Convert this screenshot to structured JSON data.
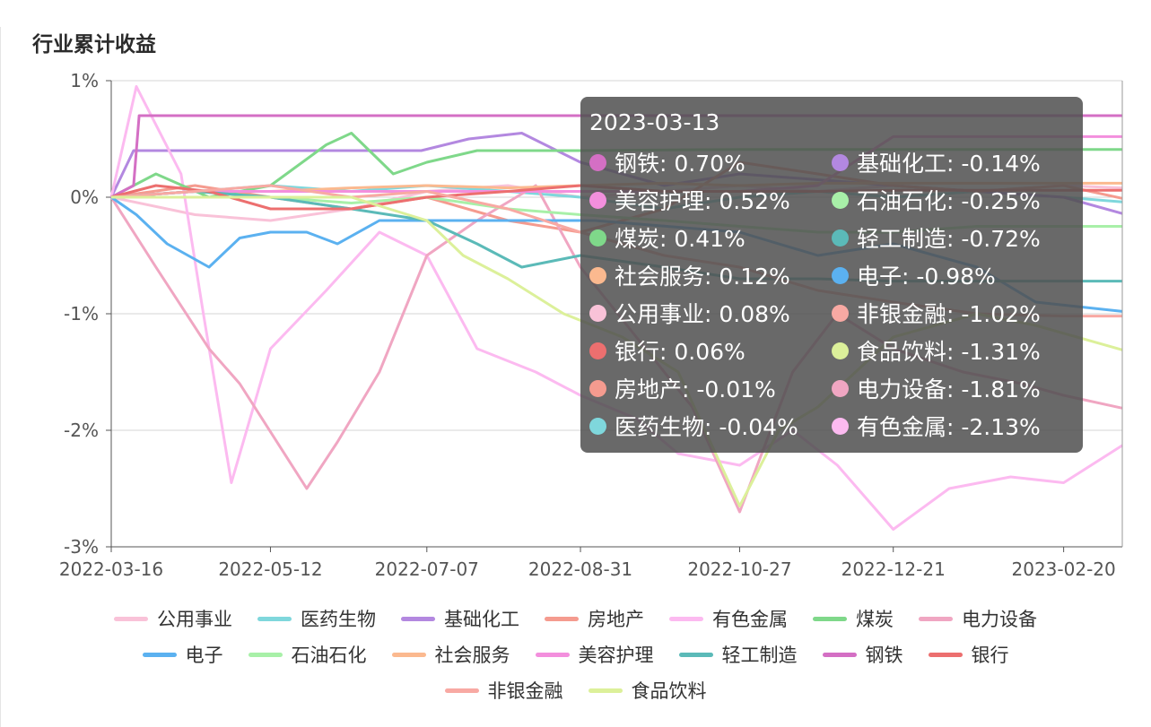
{
  "title": "行业累计收益",
  "chart_data": {
    "type": "line",
    "title": "行业累计收益",
    "ylim": [
      -3,
      1
    ],
    "y_ticks": [
      "1%",
      "0%",
      "-1%",
      "-2%",
      "-3%"
    ],
    "x_ticks": [
      "2022-03-16",
      "2022-05-12",
      "2022-07-07",
      "2022-08-31",
      "2022-10-27",
      "2022-12-21",
      "2023-02-20"
    ],
    "grid": true,
    "legend_position": "bottom",
    "series": [
      {
        "name": "公用事业",
        "color": "#f9c2d8",
        "x": [
          "2022-03-16",
          "2022-04-15",
          "2022-05-12",
          "2022-06-10",
          "2022-07-07",
          "2022-08-05",
          "2022-08-31",
          "2022-09-30",
          "2022-10-27",
          "2022-11-24",
          "2022-12-21",
          "2023-01-20",
          "2023-02-20",
          "2023-03-13"
        ],
        "values": [
          0,
          -0.15,
          -0.2,
          -0.1,
          0.05,
          0.1,
          0.0,
          0.05,
          0.1,
          0.05,
          0.1,
          0.05,
          0.1,
          0.08
        ]
      },
      {
        "name": "医药生物",
        "color": "#7fd7dc",
        "x": [
          "2022-03-16",
          "2022-04-15",
          "2022-05-12",
          "2022-06-10",
          "2022-07-07",
          "2022-08-05",
          "2022-08-31",
          "2022-09-30",
          "2022-10-27",
          "2022-11-24",
          "2022-12-21",
          "2023-01-20",
          "2023-02-20",
          "2023-03-13"
        ],
        "values": [
          0,
          0.05,
          0.1,
          0.05,
          0.1,
          0.05,
          0.0,
          -0.1,
          0.0,
          0.05,
          0.0,
          0.05,
          0.0,
          -0.04
        ]
      },
      {
        "name": "基础化工",
        "color": "#b388e0",
        "x": [
          "2022-03-16",
          "2022-03-24",
          "2022-04-15",
          "2022-05-12",
          "2022-06-10",
          "2022-07-05",
          "2022-07-22",
          "2022-08-10",
          "2022-08-31",
          "2022-09-30",
          "2022-10-27",
          "2022-11-24",
          "2022-12-21",
          "2023-01-20",
          "2023-02-20",
          "2023-03-13"
        ],
        "values": [
          0,
          0.4,
          0.4,
          0.4,
          0.4,
          0.4,
          0.5,
          0.55,
          0.3,
          0.1,
          0.2,
          0.15,
          0.1,
          0.05,
          0.0,
          -0.14
        ]
      },
      {
        "name": "房地产",
        "color": "#f59b8f",
        "x": [
          "2022-03-16",
          "2022-04-15",
          "2022-05-12",
          "2022-06-10",
          "2022-07-07",
          "2022-08-05",
          "2022-08-31",
          "2022-09-30",
          "2022-10-27",
          "2022-11-24",
          "2022-12-21",
          "2023-01-20",
          "2023-02-20",
          "2023-03-13"
        ],
        "values": [
          0,
          0.1,
          0.0,
          -0.1,
          0.0,
          -0.2,
          -0.3,
          -0.1,
          0.3,
          0.2,
          0.1,
          0.05,
          0.1,
          -0.01
        ]
      },
      {
        "name": "有色金属",
        "color": "#fcbaf0",
        "x": [
          "2022-03-16",
          "2022-03-25",
          "2022-04-10",
          "2022-04-18",
          "2022-04-28",
          "2022-05-12",
          "2022-06-01",
          "2022-06-20",
          "2022-07-07",
          "2022-07-25",
          "2022-08-15",
          "2022-08-31",
          "2022-09-20",
          "2022-10-05",
          "2022-10-27",
          "2022-11-15",
          "2022-12-01",
          "2022-12-21",
          "2023-01-10",
          "2023-02-01",
          "2023-02-20",
          "2023-03-13"
        ],
        "values": [
          0,
          0.95,
          0.2,
          -1.0,
          -2.45,
          -1.3,
          -0.8,
          -0.3,
          -0.5,
          -1.3,
          -1.5,
          -1.7,
          -1.9,
          -2.2,
          -2.3,
          -2.0,
          -2.3,
          -2.85,
          -2.5,
          -2.4,
          -2.45,
          -2.13
        ]
      },
      {
        "name": "煤炭",
        "color": "#7fd88a",
        "x": [
          "2022-03-16",
          "2022-04-01",
          "2022-04-20",
          "2022-05-12",
          "2022-06-01",
          "2022-06-10",
          "2022-06-25",
          "2022-07-07",
          "2022-07-25",
          "2022-08-31",
          "2022-10-27",
          "2022-12-21",
          "2023-02-20",
          "2023-03-13"
        ],
        "values": [
          0,
          0.2,
          0.0,
          0.1,
          0.45,
          0.55,
          0.2,
          0.3,
          0.4,
          0.4,
          0.41,
          0.41,
          0.41,
          0.41
        ]
      },
      {
        "name": "电力设备",
        "color": "#f0a6c2",
        "x": [
          "2022-03-16",
          "2022-04-01",
          "2022-04-20",
          "2022-05-01",
          "2022-05-25",
          "2022-06-05",
          "2022-06-20",
          "2022-07-07",
          "2022-07-25",
          "2022-08-15",
          "2022-08-31",
          "2022-09-20",
          "2022-10-10",
          "2022-10-27",
          "2022-11-15",
          "2022-12-01",
          "2022-12-21",
          "2023-01-15",
          "2023-02-05",
          "2023-02-20",
          "2023-03-13"
        ],
        "values": [
          0,
          -0.6,
          -1.3,
          -1.6,
          -2.5,
          -2.1,
          -1.5,
          -0.5,
          -0.2,
          0.1,
          -0.6,
          -1.2,
          -1.8,
          -2.7,
          -1.5,
          -1.0,
          -1.3,
          -1.5,
          -1.6,
          -1.7,
          -1.81
        ]
      },
      {
        "name": "电子",
        "color": "#5bb1f0",
        "x": [
          "2022-03-16",
          "2022-03-25",
          "2022-04-05",
          "2022-04-20",
          "2022-05-01",
          "2022-05-12",
          "2022-05-25",
          "2022-06-05",
          "2022-06-20",
          "2022-07-07",
          "2022-07-25",
          "2022-08-15",
          "2022-09-05",
          "2022-10-01",
          "2022-10-27",
          "2022-11-24",
          "2022-12-21",
          "2023-01-20",
          "2023-02-10",
          "2023-03-13"
        ],
        "values": [
          0,
          -0.15,
          -0.4,
          -0.6,
          -0.35,
          -0.3,
          -0.3,
          -0.4,
          -0.2,
          -0.2,
          -0.2,
          -0.2,
          -0.2,
          -0.25,
          -0.3,
          -0.5,
          -0.4,
          -0.6,
          -0.9,
          -0.98
        ]
      },
      {
        "name": "石油石化",
        "color": "#a8f0a8",
        "x": [
          "2022-03-16",
          "2022-04-15",
          "2022-05-12",
          "2022-06-10",
          "2022-07-07",
          "2022-08-05",
          "2022-08-31",
          "2022-09-30",
          "2022-10-27",
          "2022-11-24",
          "2022-12-21",
          "2023-01-20",
          "2023-02-20",
          "2023-03-13"
        ],
        "values": [
          0,
          0.05,
          0.0,
          -0.05,
          0.0,
          -0.1,
          -0.15,
          -0.2,
          -0.25,
          -0.3,
          -0.3,
          -0.25,
          -0.25,
          -0.25
        ]
      },
      {
        "name": "社会服务",
        "color": "#fbb98f",
        "x": [
          "2022-03-16",
          "2022-04-15",
          "2022-05-12",
          "2022-06-10",
          "2022-07-07",
          "2022-08-05",
          "2022-08-31",
          "2022-09-30",
          "2022-10-27",
          "2022-11-24",
          "2022-12-21",
          "2023-01-20",
          "2023-02-20",
          "2023-03-13"
        ],
        "values": [
          0,
          0.05,
          0.05,
          0.08,
          0.1,
          0.08,
          0.1,
          0.12,
          0.1,
          0.12,
          0.12,
          0.12,
          0.12,
          0.12
        ]
      },
      {
        "name": "美容护理",
        "color": "#f38fdd",
        "x": [
          "2022-03-16",
          "2022-04-15",
          "2022-05-12",
          "2022-06-10",
          "2022-07-07",
          "2022-08-05",
          "2022-08-31",
          "2022-09-30",
          "2022-10-27",
          "2022-11-24",
          "2022-12-21",
          "2023-01-20",
          "2023-02-20",
          "2023-03-13"
        ],
        "values": [
          0,
          0.05,
          0.05,
          0.05,
          0.05,
          0.05,
          0.05,
          0.05,
          0.05,
          0.1,
          0.52,
          0.52,
          0.52,
          0.52
        ]
      },
      {
        "name": "轻工制造",
        "color": "#5bbab8",
        "x": [
          "2022-03-16",
          "2022-04-15",
          "2022-05-12",
          "2022-06-10",
          "2022-07-07",
          "2022-07-25",
          "2022-08-10",
          "2022-08-31",
          "2022-09-30",
          "2022-10-27",
          "2022-11-24",
          "2022-12-21",
          "2023-01-20",
          "2023-02-20",
          "2023-03-13"
        ],
        "values": [
          0,
          0.05,
          0.0,
          -0.1,
          -0.2,
          -0.4,
          -0.6,
          -0.5,
          -0.6,
          -0.7,
          -0.7,
          -0.72,
          -0.72,
          -0.72,
          -0.72
        ]
      },
      {
        "name": "钢铁",
        "color": "#d46fc4",
        "x": [
          "2022-03-16",
          "2022-03-24",
          "2022-03-26",
          "2022-05-12",
          "2022-07-07",
          "2022-08-31",
          "2022-10-27",
          "2022-12-21",
          "2023-02-20",
          "2023-03-13"
        ],
        "values": [
          0,
          0.1,
          0.7,
          0.7,
          0.7,
          0.7,
          0.7,
          0.7,
          0.7,
          0.7
        ]
      },
      {
        "name": "银行",
        "color": "#ec6f6f",
        "x": [
          "2022-03-16",
          "2022-04-01",
          "2022-04-20",
          "2022-05-12",
          "2022-06-10",
          "2022-07-07",
          "2022-08-05",
          "2022-08-31",
          "2022-09-30",
          "2022-10-27",
          "2022-11-24",
          "2022-12-21",
          "2023-01-20",
          "2023-02-20",
          "2023-03-13"
        ],
        "values": [
          0,
          0.1,
          0.05,
          -0.1,
          -0.1,
          0.0,
          0.05,
          0.1,
          0.05,
          0.05,
          0.05,
          0.06,
          0.06,
          0.06,
          0.06
        ]
      },
      {
        "name": "非银金融",
        "color": "#f8a9a3",
        "x": [
          "2022-03-16",
          "2022-04-15",
          "2022-05-12",
          "2022-06-10",
          "2022-07-07",
          "2022-08-05",
          "2022-08-31",
          "2022-09-30",
          "2022-10-27",
          "2022-11-24",
          "2022-12-21",
          "2023-01-20",
          "2023-02-20",
          "2023-03-13"
        ],
        "values": [
          0,
          0.05,
          0.1,
          0.0,
          0.05,
          -0.1,
          -0.3,
          -0.5,
          -0.6,
          -0.8,
          -0.9,
          -1.0,
          -1.02,
          -1.02
        ]
      },
      {
        "name": "食品饮料",
        "color": "#dcf09a",
        "x": [
          "2022-03-16",
          "2022-04-15",
          "2022-05-12",
          "2022-06-10",
          "2022-07-07",
          "2022-07-20",
          "2022-08-05",
          "2022-08-25",
          "2022-09-15",
          "2022-10-05",
          "2022-10-27",
          "2022-11-10",
          "2022-11-24",
          "2022-12-21",
          "2023-01-20",
          "2023-02-10",
          "2023-03-13"
        ],
        "values": [
          0,
          0.0,
          0.0,
          0.0,
          -0.2,
          -0.5,
          -0.7,
          -1.0,
          -1.2,
          -1.5,
          -2.65,
          -2.0,
          -1.8,
          -1.2,
          -1.0,
          -1.1,
          -1.31
        ]
      }
    ],
    "tooltip": {
      "date": "2023-03-13",
      "items": [
        {
          "name": "钢铁",
          "value": "0.70%",
          "color": "#d46fc4"
        },
        {
          "name": "基础化工",
          "value": "-0.14%",
          "color": "#b388e0"
        },
        {
          "name": "美容护理",
          "value": "0.52%",
          "color": "#f38fdd"
        },
        {
          "name": "石油石化",
          "value": "-0.25%",
          "color": "#a8f0a8"
        },
        {
          "name": "煤炭",
          "value": "0.41%",
          "color": "#7fd88a"
        },
        {
          "name": "轻工制造",
          "value": "-0.72%",
          "color": "#5bbab8"
        },
        {
          "name": "社会服务",
          "value": "0.12%",
          "color": "#fbb98f"
        },
        {
          "name": "电子",
          "value": "-0.98%",
          "color": "#5bb1f0"
        },
        {
          "name": "公用事业",
          "value": "0.08%",
          "color": "#f9c2d8"
        },
        {
          "name": "非银金融",
          "value": "-1.02%",
          "color": "#f8a9a3"
        },
        {
          "name": "银行",
          "value": "0.06%",
          "color": "#ec6f6f"
        },
        {
          "name": "食品饮料",
          "value": "-1.31%",
          "color": "#dcf09a"
        },
        {
          "name": "房地产",
          "value": "-0.01%",
          "color": "#f59b8f"
        },
        {
          "name": "电力设备",
          "value": "-1.81%",
          "color": "#f0a6c2"
        },
        {
          "name": "医药生物",
          "value": "-0.04%",
          "color": "#7fd7dc"
        },
        {
          "name": "有色金属",
          "value": "-2.13%",
          "color": "#fcbaf0"
        }
      ]
    },
    "legend_rows": [
      [
        "公用事业",
        "医药生物",
        "基础化工",
        "房地产",
        "有色金属",
        "煤炭",
        "电力设备"
      ],
      [
        "电子",
        "石油石化",
        "社会服务",
        "美容护理",
        "轻工制造",
        "钢铁",
        "银行"
      ],
      [
        "非银金融",
        "食品饮料"
      ]
    ]
  }
}
